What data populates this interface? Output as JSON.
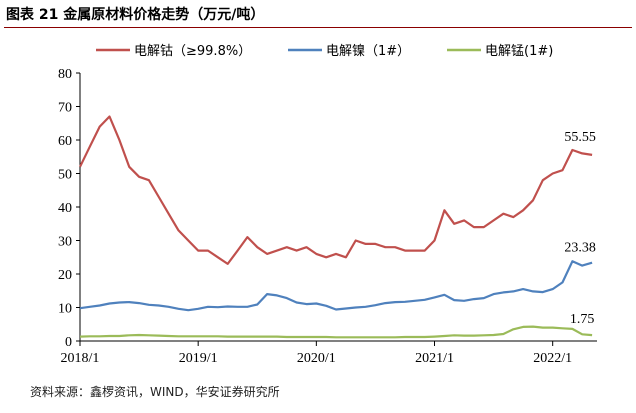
{
  "figure": {
    "title": "图表 21  金属原材料价格走势（万元/吨）",
    "source": "资料来源：鑫椤资讯，WIND，华安证券研究所"
  },
  "colors": {
    "cobalt": "#c0504d",
    "nickel": "#4f81bd",
    "manganese": "#9bbb59"
  },
  "chart_data": {
    "type": "line",
    "title": "",
    "xlabel": "",
    "ylabel": "",
    "ylim": [
      0,
      80
    ],
    "yticks": [
      0,
      10,
      20,
      30,
      40,
      50,
      60,
      70,
      80
    ],
    "xlim": [
      "2018-01",
      "2022-05"
    ],
    "xticks": [
      "2018/1",
      "2019/1",
      "2020/1",
      "2021/1",
      "2022/1"
    ],
    "grid": false,
    "legend": "top",
    "x": [
      "2018-01",
      "2018-02",
      "2018-03",
      "2018-04",
      "2018-05",
      "2018-06",
      "2018-07",
      "2018-08",
      "2018-09",
      "2018-10",
      "2018-11",
      "2018-12",
      "2019-01",
      "2019-02",
      "2019-03",
      "2019-04",
      "2019-05",
      "2019-06",
      "2019-07",
      "2019-08",
      "2019-09",
      "2019-10",
      "2019-11",
      "2019-12",
      "2020-01",
      "2020-02",
      "2020-03",
      "2020-04",
      "2020-05",
      "2020-06",
      "2020-07",
      "2020-08",
      "2020-09",
      "2020-10",
      "2020-11",
      "2020-12",
      "2021-01",
      "2021-02",
      "2021-03",
      "2021-04",
      "2021-05",
      "2021-06",
      "2021-07",
      "2021-08",
      "2021-09",
      "2021-10",
      "2021-11",
      "2021-12",
      "2022-01",
      "2022-02",
      "2022-03",
      "2022-04",
      "2022-05"
    ],
    "series": [
      {
        "name": "电解钴（≥99.8%）",
        "color": "#c0504d",
        "end_label": "55.55",
        "values": [
          52,
          58,
          64,
          67,
          60,
          52,
          49,
          48,
          43,
          38,
          33,
          30,
          27,
          27,
          25,
          23,
          27,
          31,
          28,
          26,
          27,
          28,
          27,
          28,
          26,
          25,
          26,
          25,
          30,
          29,
          29,
          28,
          28,
          27,
          27,
          27,
          30,
          39,
          35,
          36,
          34,
          34,
          36,
          38,
          37,
          39,
          42,
          48,
          50,
          51,
          57,
          56,
          55.55
        ]
      },
      {
        "name": "电解镍（1#）",
        "color": "#4f81bd",
        "end_label": "23.38",
        "values": [
          9.8,
          10.2,
          10.6,
          11.2,
          11.5,
          11.6,
          11.3,
          10.8,
          10.6,
          10.2,
          9.6,
          9.2,
          9.6,
          10.2,
          10.1,
          10.3,
          10.2,
          10.2,
          10.9,
          14.0,
          13.6,
          12.8,
          11.5,
          11.0,
          11.2,
          10.5,
          9.4,
          9.7,
          10.0,
          10.2,
          10.7,
          11.3,
          11.6,
          11.7,
          12.0,
          12.3,
          13.0,
          13.8,
          12.2,
          12.0,
          12.5,
          12.8,
          14.0,
          14.5,
          14.8,
          15.5,
          14.8,
          14.6,
          15.5,
          17.5,
          23.8,
          22.5,
          23.38
        ]
      },
      {
        "name": "电解锰(1#)",
        "color": "#9bbb59",
        "end_label": "1.75",
        "values": [
          1.3,
          1.4,
          1.4,
          1.5,
          1.5,
          1.7,
          1.8,
          1.7,
          1.6,
          1.5,
          1.4,
          1.4,
          1.4,
          1.4,
          1.4,
          1.3,
          1.3,
          1.3,
          1.3,
          1.3,
          1.3,
          1.2,
          1.2,
          1.2,
          1.2,
          1.2,
          1.1,
          1.1,
          1.1,
          1.1,
          1.1,
          1.1,
          1.1,
          1.2,
          1.2,
          1.2,
          1.3,
          1.5,
          1.7,
          1.6,
          1.6,
          1.7,
          1.8,
          2.1,
          3.5,
          4.2,
          4.3,
          4.0,
          4.0,
          3.8,
          3.6,
          2.0,
          1.75
        ]
      }
    ]
  }
}
